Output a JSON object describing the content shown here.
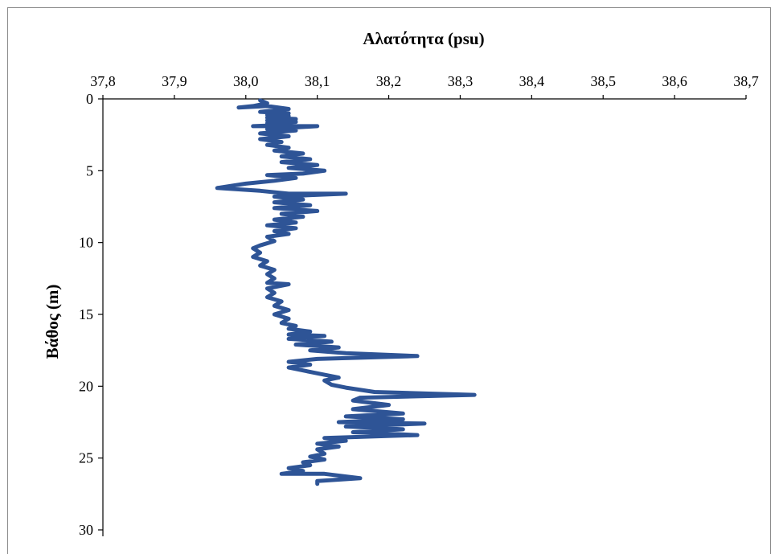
{
  "chart_data": {
    "type": "line",
    "title": "Αλατότητα (psu)",
    "xlabel": "Αλατότητα (psu)",
    "ylabel": "Βάθος (m)",
    "xlim": [
      37.8,
      38.7
    ],
    "ylim": [
      0,
      30
    ],
    "y_inverted": true,
    "x_axis_position": "top",
    "x_ticks": [
      "37,8",
      "37,9",
      "38,0",
      "38,1",
      "38,2",
      "38,3",
      "38,4",
      "38,5",
      "38,6",
      "38,7"
    ],
    "x_tick_values": [
      37.8,
      37.9,
      38.0,
      38.1,
      38.2,
      38.3,
      38.4,
      38.5,
      38.6,
      38.7
    ],
    "y_ticks": [
      "0",
      "5",
      "10",
      "15",
      "20",
      "25",
      "30"
    ],
    "y_tick_values": [
      0,
      5,
      10,
      15,
      20,
      25,
      30
    ],
    "grid": false,
    "legend": "none",
    "series": [
      {
        "color": "#2e5496",
        "points": [
          [
            38.02,
            0.1
          ],
          [
            38.03,
            0.3
          ],
          [
            38.01,
            0.5
          ],
          [
            37.99,
            0.6
          ],
          [
            38.03,
            0.5
          ],
          [
            38.06,
            0.7
          ],
          [
            38.02,
            0.9
          ],
          [
            38.06,
            1.0
          ],
          [
            38.03,
            1.1
          ],
          [
            38.06,
            1.2
          ],
          [
            38.03,
            1.3
          ],
          [
            38.07,
            1.4
          ],
          [
            38.03,
            1.5
          ],
          [
            38.07,
            1.6
          ],
          [
            38.03,
            1.7
          ],
          [
            38.06,
            1.8
          ],
          [
            38.01,
            1.9
          ],
          [
            38.1,
            1.9
          ],
          [
            38.03,
            2.1
          ],
          [
            38.07,
            2.2
          ],
          [
            38.02,
            2.4
          ],
          [
            38.06,
            2.6
          ],
          [
            38.02,
            2.8
          ],
          [
            38.05,
            3.0
          ],
          [
            38.03,
            3.2
          ],
          [
            38.06,
            3.4
          ],
          [
            38.04,
            3.6
          ],
          [
            38.08,
            3.8
          ],
          [
            38.05,
            4.0
          ],
          [
            38.09,
            4.2
          ],
          [
            38.05,
            4.4
          ],
          [
            38.1,
            4.6
          ],
          [
            38.06,
            4.8
          ],
          [
            38.11,
            5.0
          ],
          [
            38.08,
            5.2
          ],
          [
            38.03,
            5.3
          ],
          [
            38.07,
            5.5
          ],
          [
            38.04,
            5.7
          ],
          [
            38.0,
            5.9
          ],
          [
            37.96,
            6.2
          ],
          [
            38.02,
            6.4
          ],
          [
            38.06,
            6.6
          ],
          [
            38.14,
            6.6
          ],
          [
            38.04,
            6.8
          ],
          [
            38.08,
            7.0
          ],
          [
            38.04,
            7.2
          ],
          [
            38.09,
            7.4
          ],
          [
            38.04,
            7.6
          ],
          [
            38.1,
            7.8
          ],
          [
            38.05,
            8.0
          ],
          [
            38.08,
            8.2
          ],
          [
            38.04,
            8.4
          ],
          [
            38.07,
            8.6
          ],
          [
            38.03,
            8.8
          ],
          [
            38.07,
            9.0
          ],
          [
            38.04,
            9.2
          ],
          [
            38.06,
            9.4
          ],
          [
            38.03,
            9.6
          ],
          [
            38.04,
            9.9
          ],
          [
            38.02,
            10.2
          ],
          [
            38.01,
            10.4
          ],
          [
            38.02,
            10.7
          ],
          [
            38.01,
            11.0
          ],
          [
            38.03,
            11.3
          ],
          [
            38.02,
            11.6
          ],
          [
            38.04,
            11.9
          ],
          [
            38.03,
            12.2
          ],
          [
            38.04,
            12.5
          ],
          [
            38.03,
            12.8
          ],
          [
            38.06,
            12.9
          ],
          [
            38.03,
            13.2
          ],
          [
            38.04,
            13.5
          ],
          [
            38.03,
            13.8
          ],
          [
            38.05,
            14.1
          ],
          [
            38.04,
            14.4
          ],
          [
            38.06,
            14.7
          ],
          [
            38.04,
            15.0
          ],
          [
            38.06,
            15.3
          ],
          [
            38.05,
            15.6
          ],
          [
            38.07,
            15.8
          ],
          [
            38.06,
            16.0
          ],
          [
            38.09,
            16.2
          ],
          [
            38.06,
            16.4
          ],
          [
            38.11,
            16.5
          ],
          [
            38.06,
            16.7
          ],
          [
            38.12,
            16.9
          ],
          [
            38.07,
            17.1
          ],
          [
            38.13,
            17.3
          ],
          [
            38.09,
            17.5
          ],
          [
            38.14,
            17.7
          ],
          [
            38.24,
            17.9
          ],
          [
            38.1,
            18.1
          ],
          [
            38.06,
            18.3
          ],
          [
            38.09,
            18.5
          ],
          [
            38.06,
            18.7
          ],
          [
            38.08,
            18.9
          ],
          [
            38.1,
            19.1
          ],
          [
            38.13,
            19.4
          ],
          [
            38.11,
            19.6
          ],
          [
            38.12,
            19.9
          ],
          [
            38.14,
            20.1
          ],
          [
            38.18,
            20.4
          ],
          [
            38.32,
            20.6
          ],
          [
            38.16,
            20.8
          ],
          [
            38.15,
            21.0
          ],
          [
            38.2,
            21.3
          ],
          [
            38.15,
            21.6
          ],
          [
            38.22,
            21.9
          ],
          [
            38.14,
            22.1
          ],
          [
            38.22,
            22.3
          ],
          [
            38.13,
            22.5
          ],
          [
            38.25,
            22.6
          ],
          [
            38.14,
            22.8
          ],
          [
            38.22,
            23.0
          ],
          [
            38.15,
            23.2
          ],
          [
            38.24,
            23.4
          ],
          [
            38.11,
            23.6
          ],
          [
            38.14,
            23.8
          ],
          [
            38.1,
            24.0
          ],
          [
            38.13,
            24.2
          ],
          [
            38.1,
            24.4
          ],
          [
            38.11,
            24.7
          ],
          [
            38.09,
            24.9
          ],
          [
            38.11,
            25.1
          ],
          [
            38.08,
            25.3
          ],
          [
            38.09,
            25.5
          ],
          [
            38.06,
            25.7
          ],
          [
            38.08,
            25.9
          ],
          [
            38.05,
            26.1
          ],
          [
            38.11,
            26.1
          ],
          [
            38.16,
            26.4
          ],
          [
            38.1,
            26.6
          ],
          [
            38.1,
            26.8
          ]
        ]
      }
    ]
  }
}
